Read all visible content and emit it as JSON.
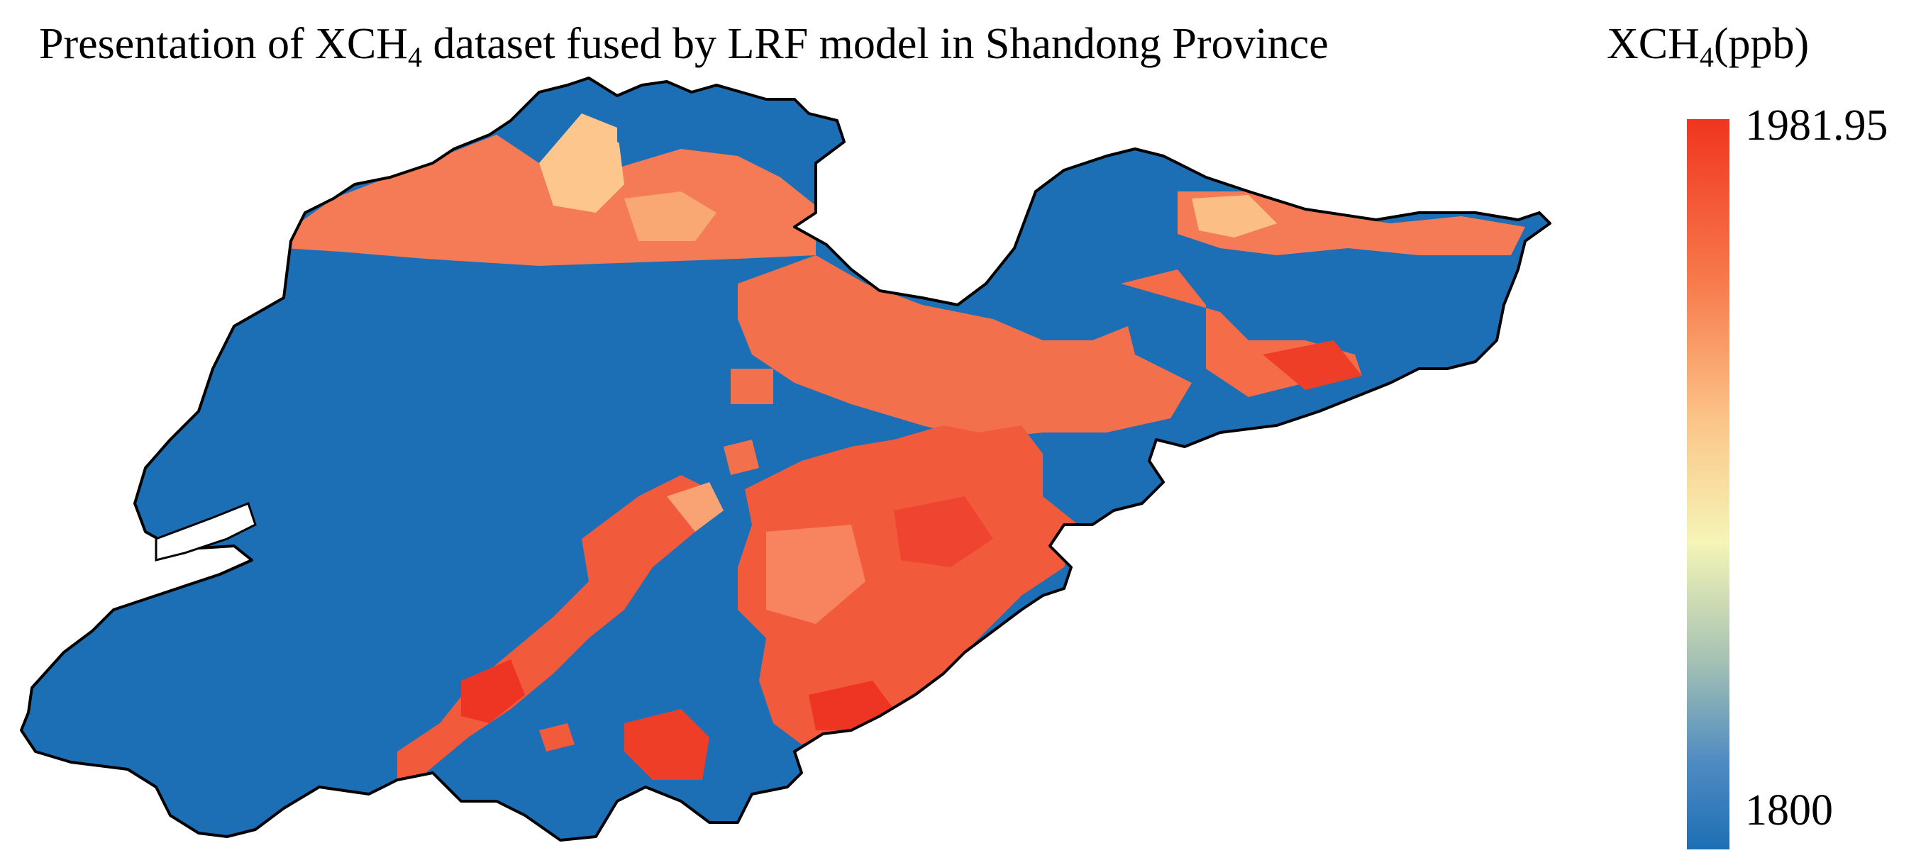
{
  "title": {
    "prefix": "Presentation of XCH",
    "subscript": "4",
    "suffix": " dataset fused by LRF model in Shandong Province"
  },
  "legend": {
    "label_prefix": "XCH",
    "label_subscript": "4",
    "label_suffix": "(ppb)",
    "max_label": "1981.95",
    "min_label": "1800"
  },
  "colors": {
    "low": "#1d6fb5",
    "mid": "#f4f5b6",
    "high": "#f0351f",
    "outline": "#000000"
  },
  "chart_data": {
    "type": "heatmap",
    "value_range": [
      1800,
      1981.95
    ],
    "unit": "ppb"
  }
}
